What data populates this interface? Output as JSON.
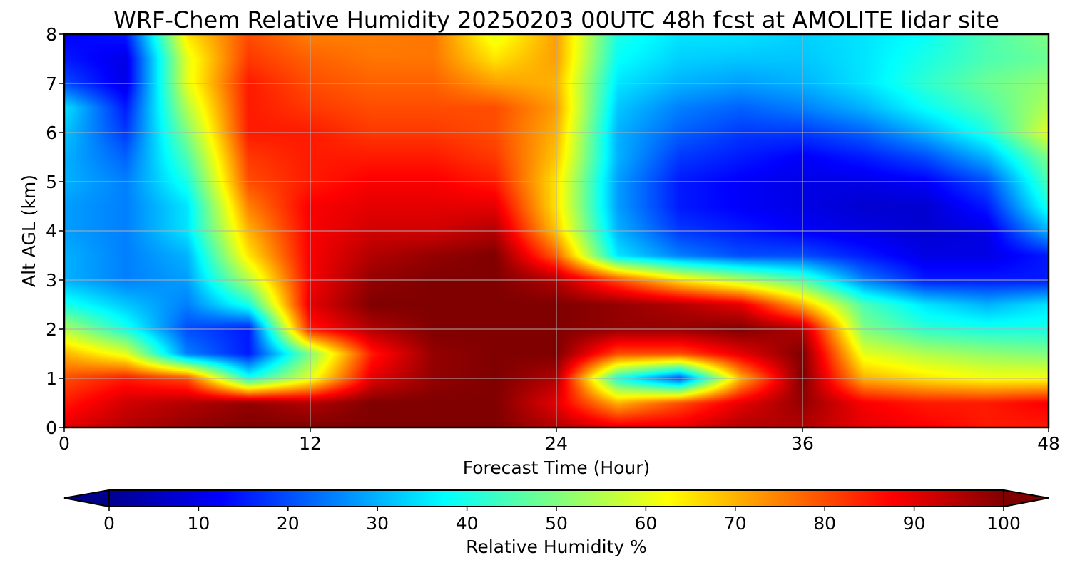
{
  "chart_data": {
    "type": "heatmap",
    "title": "WRF-Chem Relative Humidity 20250203 00UTC 48h fcst at AMOLITE lidar site",
    "xlabel": "Forecast Time (Hour)",
    "ylabel": "Alt AGL (km)",
    "xlim": [
      0,
      48
    ],
    "ylim": [
      0,
      8
    ],
    "xticks": [
      "0",
      "12",
      "24",
      "36",
      "48"
    ],
    "yticks": [
      "0",
      "1",
      "2",
      "3",
      "4",
      "5",
      "6",
      "7",
      "8"
    ],
    "grid": true,
    "colormap": "jet",
    "colorbar": {
      "label": "Relative Humidity %",
      "range": [
        0,
        100
      ],
      "ticks": [
        "0",
        "10",
        "20",
        "30",
        "40",
        "50",
        "60",
        "70",
        "80",
        "90",
        "100"
      ],
      "extend": "both",
      "orientation": "horizontal"
    },
    "x": [
      0,
      3,
      6,
      9,
      12,
      15,
      18,
      21,
      24,
      27,
      30,
      33,
      36,
      39,
      42,
      45,
      48
    ],
    "y": [
      0,
      0.5,
      1,
      1.5,
      2,
      2.5,
      3,
      3.5,
      4,
      4.5,
      5,
      5.5,
      6,
      6.5,
      7,
      7.5,
      8
    ],
    "z": [
      [
        90,
        95,
        98,
        100,
        100,
        100,
        100,
        100,
        95,
        90,
        90,
        95,
        95,
        90,
        88,
        85,
        85
      ],
      [
        85,
        92,
        95,
        98,
        95,
        100,
        100,
        100,
        90,
        70,
        80,
        90,
        98,
        88,
        85,
        85,
        88
      ],
      [
        80,
        85,
        80,
        40,
        60,
        90,
        98,
        100,
        95,
        40,
        20,
        70,
        100,
        70,
        65,
        62,
        62
      ],
      [
        70,
        60,
        25,
        15,
        50,
        85,
        98,
        100,
        100,
        80,
        80,
        90,
        100,
        60,
        55,
        52,
        50
      ],
      [
        55,
        40,
        20,
        15,
        85,
        95,
        100,
        100,
        100,
        98,
        98,
        100,
        95,
        50,
        42,
        40,
        40
      ],
      [
        40,
        32,
        25,
        40,
        90,
        100,
        100,
        100,
        100,
        98,
        95,
        90,
        70,
        45,
        35,
        30,
        35
      ],
      [
        30,
        25,
        28,
        55,
        88,
        98,
        100,
        100,
        95,
        80,
        65,
        55,
        45,
        25,
        15,
        15,
        15
      ],
      [
        30,
        25,
        30,
        65,
        88,
        95,
        98,
        100,
        78,
        35,
        25,
        20,
        20,
        15,
        10,
        10,
        15
      ],
      [
        28,
        25,
        35,
        70,
        88,
        92,
        92,
        95,
        68,
        30,
        18,
        15,
        12,
        10,
        8,
        10,
        30
      ],
      [
        28,
        25,
        35,
        75,
        88,
        90,
        90,
        90,
        65,
        28,
        15,
        12,
        10,
        8,
        8,
        15,
        40
      ],
      [
        30,
        25,
        40,
        80,
        85,
        88,
        88,
        85,
        65,
        28,
        15,
        12,
        10,
        10,
        12,
        20,
        45
      ],
      [
        30,
        22,
        45,
        82,
        85,
        85,
        85,
        82,
        68,
        30,
        18,
        15,
        12,
        15,
        20,
        30,
        50
      ],
      [
        32,
        18,
        50,
        85,
        85,
        82,
        82,
        80,
        70,
        30,
        22,
        18,
        18,
        22,
        30,
        40,
        60
      ],
      [
        35,
        15,
        55,
        85,
        82,
        80,
        80,
        80,
        72,
        32,
        25,
        22,
        25,
        30,
        38,
        45,
        55
      ],
      [
        20,
        10,
        60,
        85,
        80,
        78,
        78,
        72,
        70,
        35,
        30,
        28,
        30,
        35,
        42,
        48,
        52
      ],
      [
        15,
        10,
        60,
        82,
        78,
        76,
        76,
        65,
        72,
        38,
        33,
        32,
        32,
        35,
        40,
        45,
        48
      ],
      [
        12,
        15,
        65,
        80,
        75,
        75,
        76,
        60,
        72,
        40,
        35,
        35,
        33,
        35,
        38,
        45,
        50
      ]
    ]
  }
}
